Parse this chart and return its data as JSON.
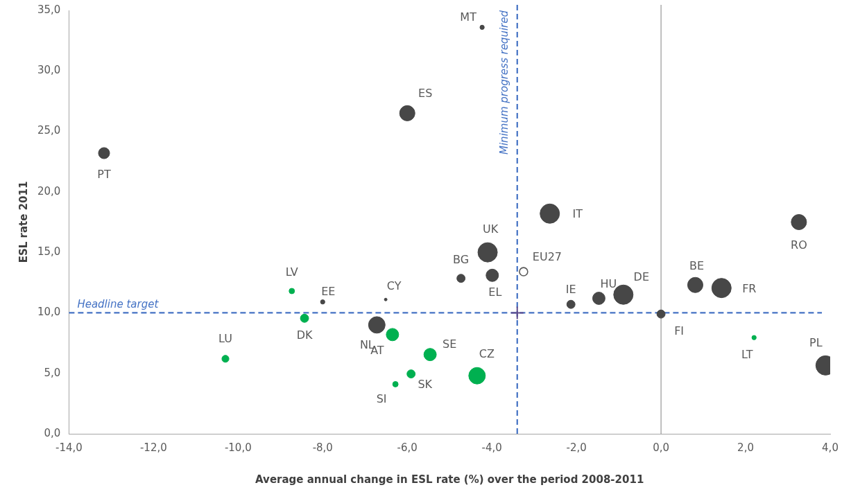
{
  "chart_data": {
    "type": "bubble",
    "xlabel": "Average annual change in ESL rate (%) over the period 2008-2011",
    "ylabel": "ESL rate 2011",
    "xlim": [
      -14,
      4
    ],
    "xticks": [
      {
        "value": -14,
        "label": "-14,0"
      },
      {
        "value": -12,
        "label": "-12,0"
      },
      {
        "value": -10,
        "label": "-10,0"
      },
      {
        "value": -8,
        "label": "-8,0"
      },
      {
        "value": -6,
        "label": "-6,0"
      },
      {
        "value": -4,
        "label": "-4,0"
      },
      {
        "value": -2,
        "label": "-2,0"
      },
      {
        "value": 0,
        "label": "0,0"
      },
      {
        "value": 2,
        "label": "2,0"
      },
      {
        "value": 4,
        "label": "4,0"
      }
    ],
    "ylim": [
      0,
      35
    ],
    "yticks": [
      {
        "value": 0,
        "label": "0,0"
      },
      {
        "value": 5,
        "label": "5,0"
      },
      {
        "value": 10,
        "label": "10,0"
      },
      {
        "value": 15,
        "label": "15,0"
      },
      {
        "value": 20,
        "label": "20,0"
      },
      {
        "value": 25,
        "label": "25,0"
      },
      {
        "value": 30,
        "label": "30,0"
      },
      {
        "value": 35,
        "label": "35,0"
      }
    ],
    "grid": false,
    "legend": false,
    "series": [
      {
        "color": "#474747",
        "x": [
          -4.23,
          -6.0,
          -13.17,
          -2.63,
          -4.1,
          3.26,
          -4.73,
          -3.99,
          -8.0,
          -6.51,
          -2.13,
          -1.47,
          -0.89,
          0.81,
          1.43,
          0,
          -6.72,
          3.89
        ],
        "values": [
          33.6,
          26.5,
          23.2,
          18.2,
          15.0,
          17.5,
          12.85,
          13.1,
          10.9,
          11.1,
          10.7,
          11.2,
          11.5,
          12.3,
          12.05,
          9.9,
          9.0,
          5.65
        ],
        "sizes": [
          0.05,
          0.62,
          0.33,
          1,
          1,
          0.62,
          0.18,
          0.41,
          0.05,
          0.02,
          0.18,
          0.41,
          1,
          0.62,
          1,
          0.18,
          0.73,
          1
        ]
      },
      {
        "color": "#00b050",
        "x": [
          -8.73,
          -8.43,
          -6.35,
          -5.46,
          -5.91,
          -6.28,
          -4.35,
          -10.3,
          2.2
        ],
        "values": [
          11.8,
          9.55,
          8.2,
          6.55,
          4.95,
          4.1,
          4.8,
          6.2,
          7.95
        ],
        "sizes": [
          0.08,
          0.18,
          0.41,
          0.41,
          0.18,
          0.08,
          0.73,
          0.13,
          0.05
        ]
      },
      {
        "color": "#ffffff",
        "x": [
          -3.25
        ],
        "values": [
          13.4
        ],
        "sizes": [
          0.18
        ]
      },
      {
        "type": "scatter",
        "color": "#5f4b8b",
        "marker": "cross",
        "x": [
          -3.4
        ],
        "values": [
          10
        ]
      }
    ],
    "ref_lines": [
      {
        "axis": "y",
        "value": 10,
        "label": "Headline target",
        "color": "#4472c4",
        "line_style": "dashed"
      },
      {
        "axis": "x",
        "value": -3.4,
        "label": "Minimum progress required",
        "color": "#4472c4",
        "line_style": "dashed"
      },
      {
        "axis": "x",
        "value": 0,
        "color": "#808080",
        "line_style": "solid"
      }
    ],
    "annotations": [
      {
        "text": "MT",
        "x": -4.23,
        "y": 33.6
      },
      {
        "text": "ES",
        "x": -6.0,
        "y": 26.5
      },
      {
        "text": "PT",
        "x": -13.17,
        "y": 23.2
      },
      {
        "text": "IT",
        "x": -2.63,
        "y": 18.2
      },
      {
        "text": "UK",
        "x": -4.1,
        "y": 15.0
      },
      {
        "text": "RO",
        "x": 3.26,
        "y": 17.5
      },
      {
        "text": "BG",
        "x": -4.73,
        "y": 12.85
      },
      {
        "text": "EL",
        "x": -3.99,
        "y": 13.1
      },
      {
        "text": "EE",
        "x": -8.0,
        "y": 10.9
      },
      {
        "text": "CY",
        "x": -6.51,
        "y": 11.1
      },
      {
        "text": "IE",
        "x": -2.13,
        "y": 10.7
      },
      {
        "text": "HU",
        "x": -1.47,
        "y": 11.2
      },
      {
        "text": "DE",
        "x": -0.89,
        "y": 11.5
      },
      {
        "text": "BE",
        "x": 0.81,
        "y": 12.3
      },
      {
        "text": "FR",
        "x": 1.43,
        "y": 12.05
      },
      {
        "text": "FI",
        "x": 0,
        "y": 9.9
      },
      {
        "text": "NL",
        "x": -6.72,
        "y": 9.0
      },
      {
        "text": "PL",
        "x": 3.89,
        "y": 5.65
      },
      {
        "text": "LV",
        "x": -8.73,
        "y": 11.8
      },
      {
        "text": "DK",
        "x": -8.43,
        "y": 9.55
      },
      {
        "text": "AT",
        "x": -6.35,
        "y": 8.2
      },
      {
        "text": "SE",
        "x": -5.46,
        "y": 6.55
      },
      {
        "text": "SK",
        "x": -5.91,
        "y": 4.95
      },
      {
        "text": "SI",
        "x": -6.28,
        "y": 4.1
      },
      {
        "text": "CZ",
        "x": -4.35,
        "y": 4.8
      },
      {
        "text": "LU",
        "x": -10.3,
        "y": 6.2
      },
      {
        "text": "LT",
        "x": 2.2,
        "y": 7.95
      },
      {
        "text": "EU27",
        "x": -3.25,
        "y": 13.4
      }
    ]
  }
}
